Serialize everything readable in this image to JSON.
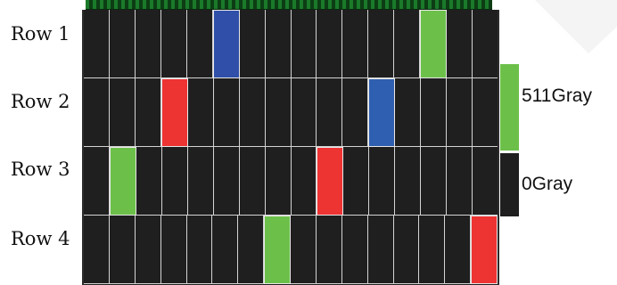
{
  "rows": [
    {
      "label": "Row 1",
      "lit": {
        "5": "#2f4fa8",
        "13": "#6cc04a"
      }
    },
    {
      "label": "Row 2",
      "lit": {
        "3": "#ee3333",
        "11": "#2f5fb0"
      }
    },
    {
      "label": "Row 3",
      "lit": {
        "1": "#6cc04a",
        "9": "#ee3333"
      }
    },
    {
      "label": "Row 4",
      "lit": {
        "7": "#6cc04a",
        "15": "#ee3333"
      }
    }
  ],
  "columns": 16,
  "off_color": "#1f1f1f",
  "legend": [
    {
      "label": "511Gray",
      "color": "#6cc04a"
    },
    {
      "label": "0Gray",
      "color": "#1f1f1f"
    }
  ]
}
